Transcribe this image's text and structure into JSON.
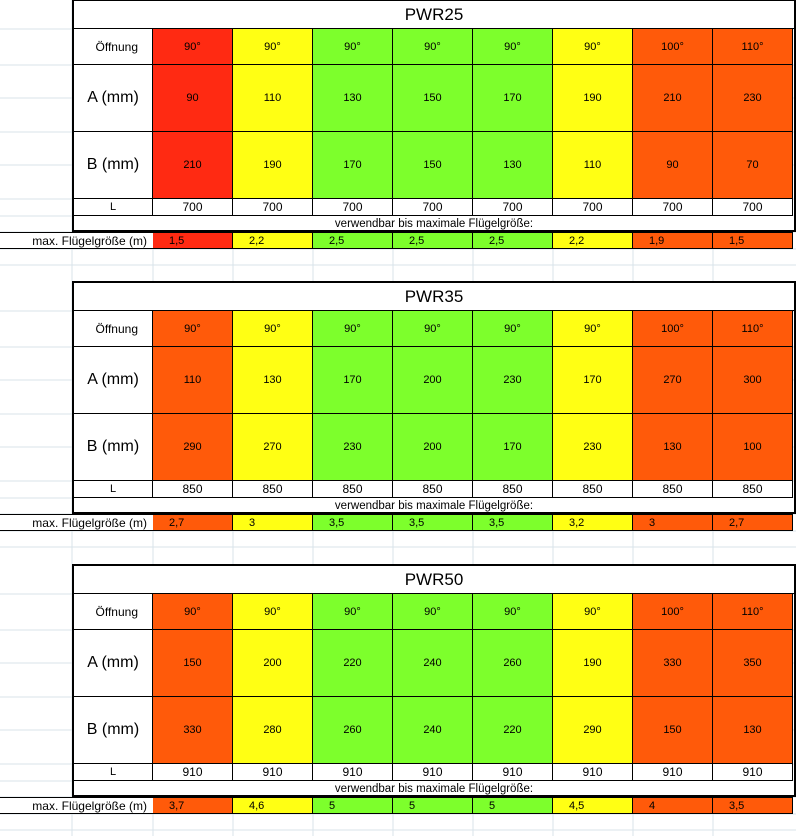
{
  "row_labels": {
    "opening": "Öffnung",
    "a": "A (mm)",
    "b": "B (mm)",
    "l": "L",
    "max": "max. Flügelgröße (m)"
  },
  "caption": "verwendbar bis maximale Flügelgröße:",
  "colors": {
    "red": "#ff2a12",
    "orange": "#ff5a0a",
    "yellow": "#ffff14",
    "green": "#7dff2c"
  },
  "blocks": [
    {
      "title": "PWR25",
      "columns": [
        {
          "color": "red",
          "opening": "90°",
          "a": "90",
          "b": "210",
          "l": "700",
          "max": "1,5"
        },
        {
          "color": "yellow",
          "opening": "90°",
          "a": "110",
          "b": "190",
          "l": "700",
          "max": "2,2"
        },
        {
          "color": "green",
          "opening": "90°",
          "a": "130",
          "b": "170",
          "l": "700",
          "max": "2,5"
        },
        {
          "color": "green",
          "opening": "90°",
          "a": "150",
          "b": "150",
          "l": "700",
          "max": "2,5"
        },
        {
          "color": "green",
          "opening": "90°",
          "a": "170",
          "b": "130",
          "l": "700",
          "max": "2,5"
        },
        {
          "color": "yellow",
          "opening": "90°",
          "a": "190",
          "b": "110",
          "l": "700",
          "max": "2,2"
        },
        {
          "color": "orange",
          "opening": "100°",
          "a": "210",
          "b": "90",
          "l": "700",
          "max": "1,9"
        },
        {
          "color": "orange",
          "opening": "110°",
          "a": "230",
          "b": "70",
          "l": "700",
          "max": "1,5"
        }
      ]
    },
    {
      "title": "PWR35",
      "columns": [
        {
          "color": "orange",
          "opening": "90°",
          "a": "110",
          "b": "290",
          "l": "850",
          "max": "2,7"
        },
        {
          "color": "yellow",
          "opening": "90°",
          "a": "130",
          "b": "270",
          "l": "850",
          "max": "3"
        },
        {
          "color": "green",
          "opening": "90°",
          "a": "170",
          "b": "230",
          "l": "850",
          "max": "3,5"
        },
        {
          "color": "green",
          "opening": "90°",
          "a": "200",
          "b": "200",
          "l": "850",
          "max": "3,5"
        },
        {
          "color": "green",
          "opening": "90°",
          "a": "230",
          "b": "170",
          "l": "850",
          "max": "3,5"
        },
        {
          "color": "yellow",
          "opening": "90°",
          "a": "170",
          "b": "230",
          "l": "850",
          "max": "3,2"
        },
        {
          "color": "orange",
          "opening": "100°",
          "a": "270",
          "b": "130",
          "l": "850",
          "max": "3"
        },
        {
          "color": "orange",
          "opening": "110°",
          "a": "300",
          "b": "100",
          "l": "850",
          "max": "2,7"
        }
      ]
    },
    {
      "title": "PWR50",
      "columns": [
        {
          "color": "orange",
          "opening": "90°",
          "a": "150",
          "b": "330",
          "l": "910",
          "max": "3,7"
        },
        {
          "color": "yellow",
          "opening": "90°",
          "a": "200",
          "b": "280",
          "l": "910",
          "max": "4,6"
        },
        {
          "color": "green",
          "opening": "90°",
          "a": "220",
          "b": "260",
          "l": "910",
          "max": "5"
        },
        {
          "color": "green",
          "opening": "90°",
          "a": "240",
          "b": "240",
          "l": "910",
          "max": "5"
        },
        {
          "color": "green",
          "opening": "90°",
          "a": "260",
          "b": "220",
          "l": "910",
          "max": "5"
        },
        {
          "color": "yellow",
          "opening": "90°",
          "a": "190",
          "b": "290",
          "l": "910",
          "max": "4,5"
        },
        {
          "color": "orange",
          "opening": "100°",
          "a": "330",
          "b": "150",
          "l": "910",
          "max": "4"
        },
        {
          "color": "orange",
          "opening": "110°",
          "a": "350",
          "b": "130",
          "l": "910",
          "max": "3,5"
        }
      ]
    }
  ]
}
